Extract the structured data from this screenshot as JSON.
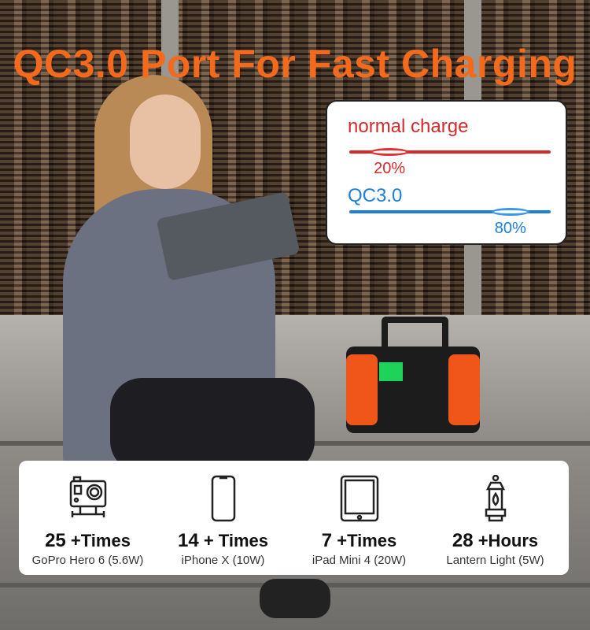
{
  "headline": "QC3.0 Port For Fast Charging",
  "comparison": {
    "normal": {
      "label": "normal charge",
      "percent_label": "20%",
      "value": 20,
      "color": "#d42a2a"
    },
    "qc": {
      "label": "QC3.0",
      "percent_label": "80%",
      "value": 80,
      "color": "#1e7fd8"
    }
  },
  "devices": [
    {
      "icon": "gopro-camera-icon",
      "count": "25",
      "unit": "+Times",
      "name": "GoPro Hero 6 (5.6W)"
    },
    {
      "icon": "smartphone-icon",
      "count": "14",
      "unit": "+ Times",
      "name": "iPhone X (10W)"
    },
    {
      "icon": "tablet-icon",
      "count": "7",
      "unit": "+Times",
      "name": "iPad Mini 4 (20W)"
    },
    {
      "icon": "lantern-icon",
      "count": "28",
      "unit": "+Hours",
      "name": "Lantern Light (5W)"
    }
  ],
  "accent": "#f36a1c"
}
